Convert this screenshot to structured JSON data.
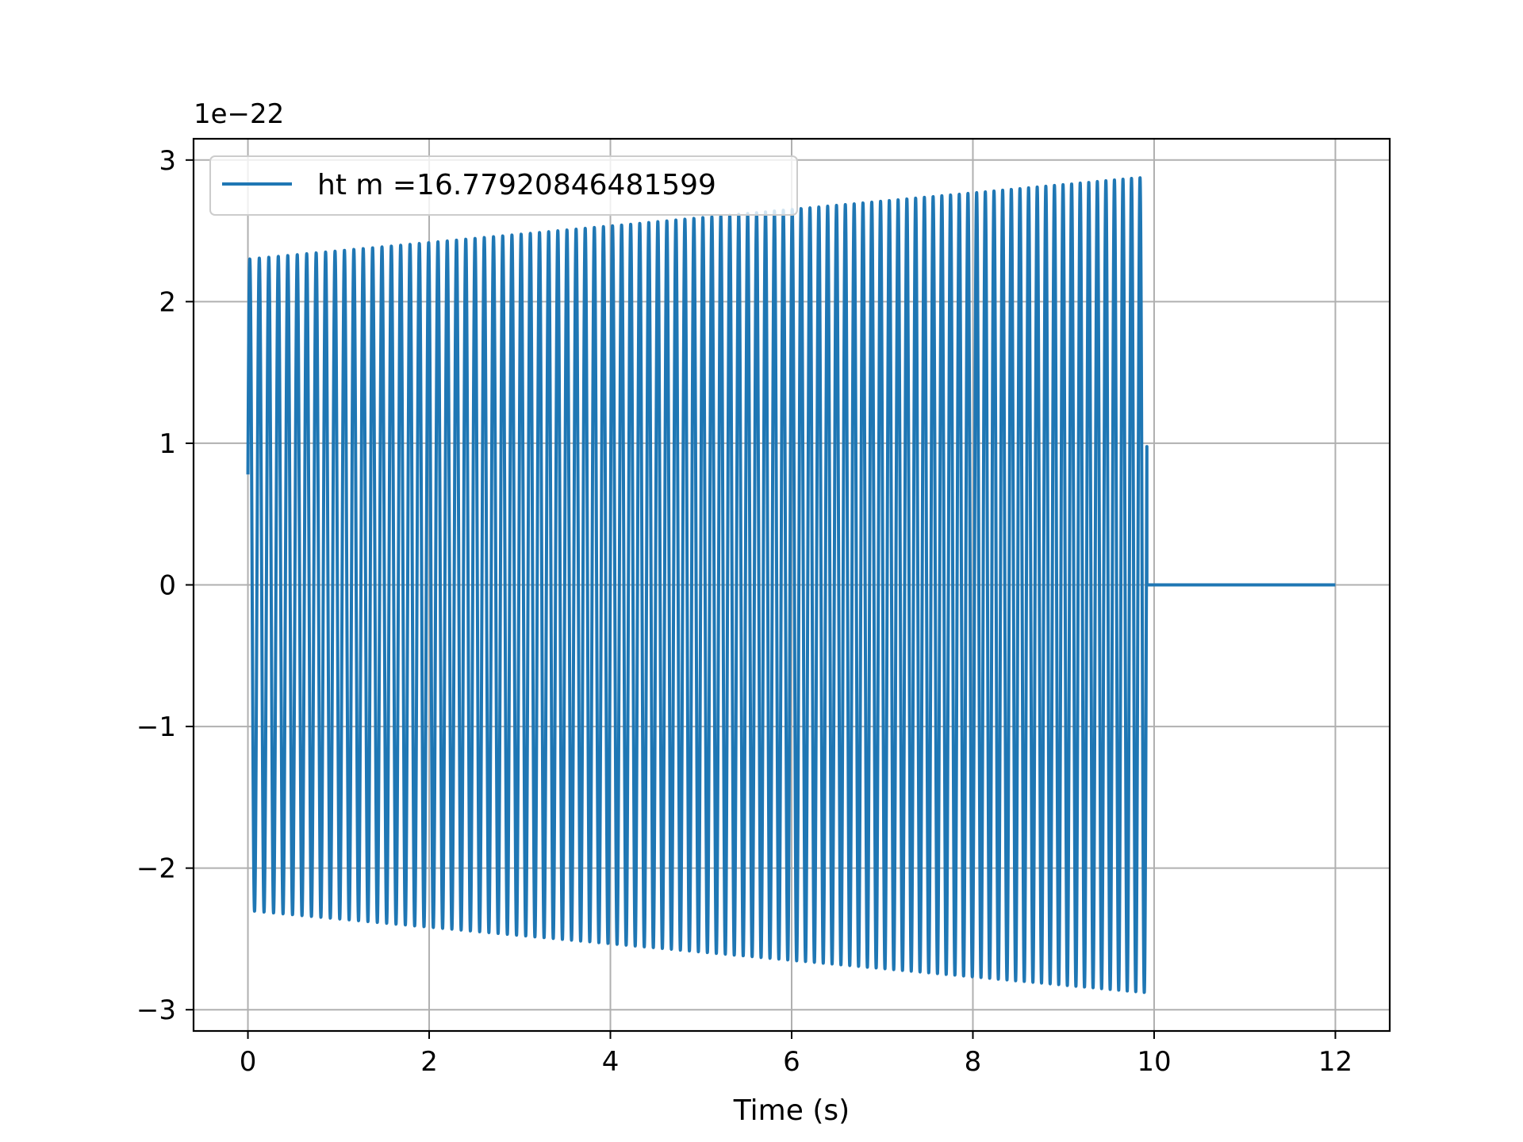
{
  "chart_data": {
    "type": "line",
    "title": "",
    "xlabel": "Time (s)",
    "ylabel": "",
    "y_offset_text": "1e−22",
    "xlim": [
      -0.6,
      12.6
    ],
    "ylim": [
      -3.15,
      3.15
    ],
    "x_ticks": [
      0,
      2,
      4,
      6,
      8,
      10,
      12
    ],
    "x_tick_labels": [
      "0",
      "2",
      "4",
      "6",
      "8",
      "10",
      "12"
    ],
    "y_ticks": [
      -3,
      -2,
      -1,
      0,
      1,
      2,
      3
    ],
    "y_tick_labels": [
      "−3",
      "−2",
      "−1",
      "0",
      "1",
      "2",
      "3"
    ],
    "grid": true,
    "legend_position": "upper-left",
    "color": "#1f77b4",
    "series": [
      {
        "name": "ht m =16.77920846481599",
        "signal": "chirp",
        "t_start": 0,
        "t_end_signal": 9.92,
        "t_end": 12,
        "amplitude_start": 2.3,
        "amplitude_end": 2.88,
        "cycle_count": 100,
        "initial_value": 0.78,
        "tail_value": 0
      }
    ]
  }
}
